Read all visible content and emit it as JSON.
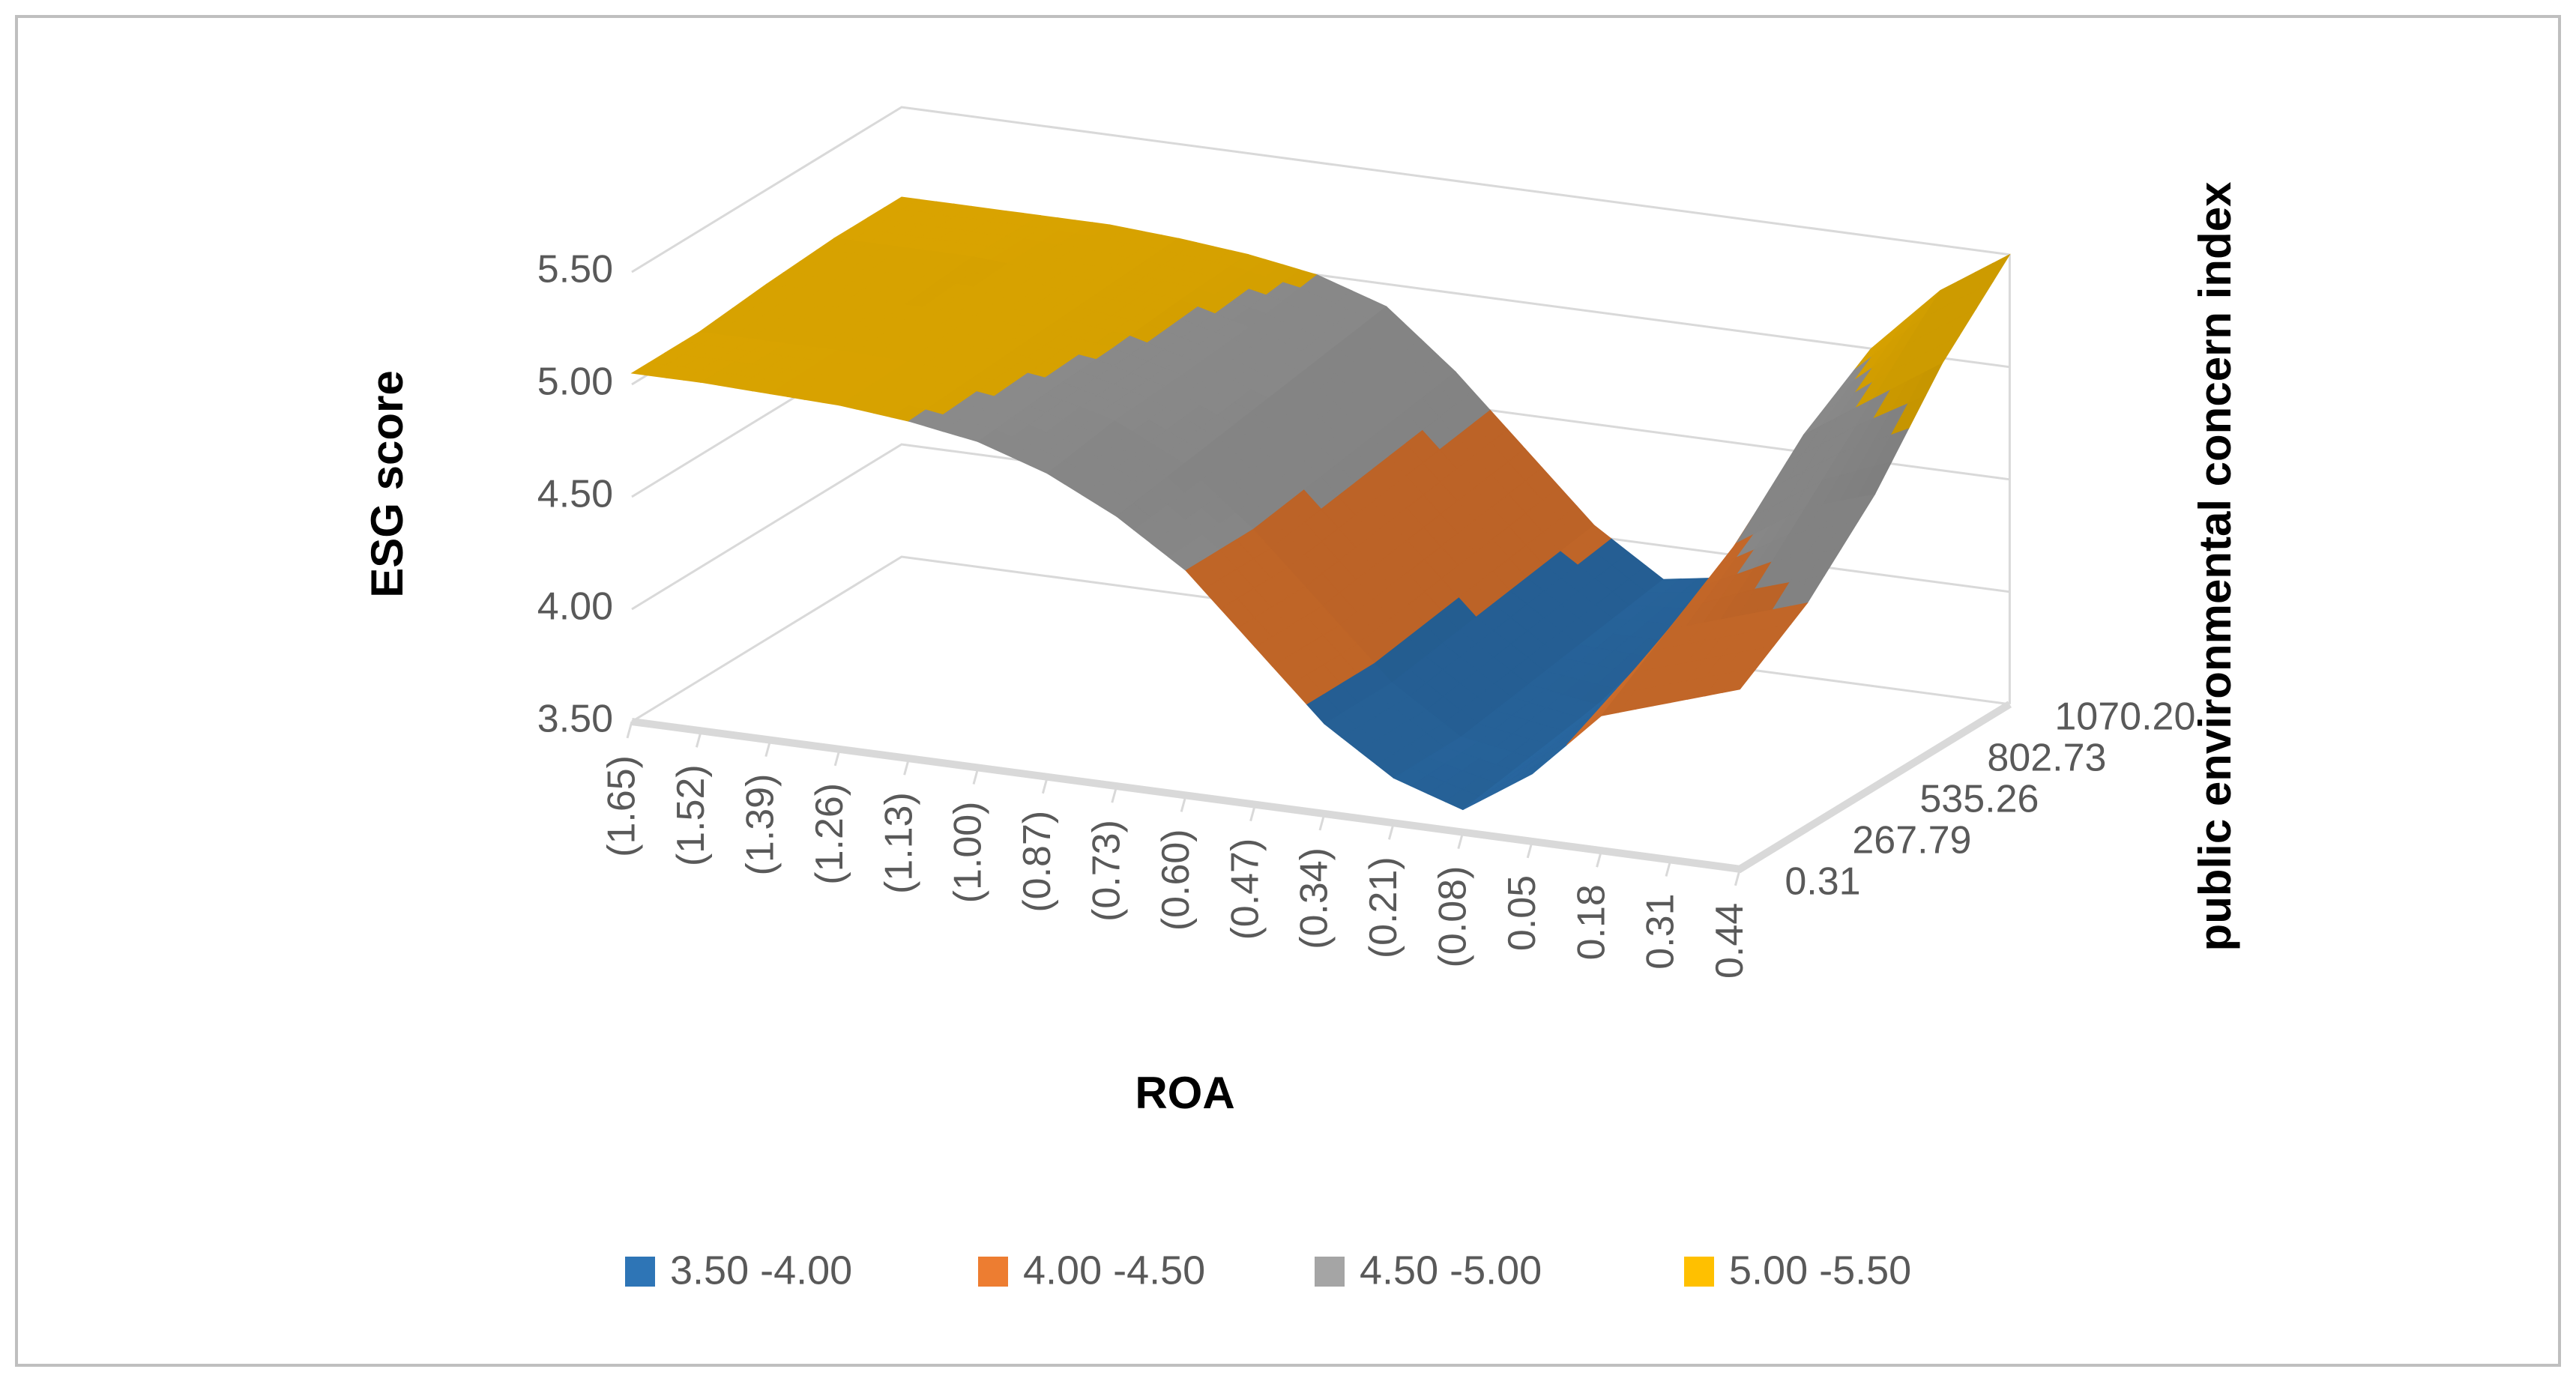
{
  "chart_data": {
    "type": "surface",
    "x_label": "ROA",
    "z_label": "ESG score",
    "depth_label": "public environmental concern index",
    "categories": [
      "(1.65)",
      "(1.52)",
      "(1.39)",
      "(1.26)",
      "(1.13)",
      "(1.00)",
      "(0.87)",
      "(0.73)",
      "(0.60)",
      "(0.47)",
      "(0.34)",
      "(0.21)",
      "(0.08)",
      "0.05",
      "0.18",
      "0.31",
      "0.44"
    ],
    "depth_categories": [
      "0.31",
      "267.79",
      "535.26",
      "802.73",
      "1070.20"
    ],
    "zlim": [
      3.5,
      5.5
    ],
    "zticks": [
      {
        "value": 3.5,
        "label": "3.50"
      },
      {
        "value": 4.0,
        "label": "4.00"
      },
      {
        "value": 4.5,
        "label": "4.50"
      },
      {
        "value": 5.0,
        "label": "5.00"
      },
      {
        "value": 5.5,
        "label": "5.50"
      }
    ],
    "grid": true,
    "legend": "bottom",
    "series": [
      {
        "name": "3.50 -4.00",
        "color": "#2e75b6"
      },
      {
        "name": "4.00 -4.50",
        "color": "#ed7d31"
      },
      {
        "name": "4.50 -5.00",
        "color": "#a5a5a5"
      },
      {
        "name": "5.00 -5.50",
        "color": "#ffc000"
      }
    ],
    "z": [
      [
        5.05,
        5.05,
        5.04,
        5.03,
        5.0,
        4.95,
        4.85,
        4.7,
        4.5,
        4.2,
        3.9,
        3.7,
        3.6,
        3.8,
        4.1,
        4.2,
        4.3
      ],
      [
        5.05,
        5.05,
        5.05,
        5.04,
        5.02,
        4.98,
        4.9,
        4.75,
        4.5,
        4.2,
        3.9,
        3.7,
        3.65,
        3.9,
        4.3,
        4.4,
        4.5
      ],
      [
        5.08,
        5.08,
        5.07,
        5.06,
        5.04,
        5.0,
        4.92,
        4.8,
        4.55,
        4.25,
        3.95,
        3.75,
        3.7,
        4.0,
        4.5,
        4.7,
        4.8
      ],
      [
        5.1,
        5.1,
        5.1,
        5.08,
        5.06,
        5.03,
        4.95,
        4.85,
        4.6,
        4.3,
        4.0,
        3.8,
        3.8,
        4.2,
        4.8,
        5.0,
        5.2
      ],
      [
        5.1,
        5.1,
        5.1,
        5.1,
        5.08,
        5.05,
        5.0,
        4.9,
        4.65,
        4.35,
        4.05,
        3.85,
        3.9,
        4.4,
        5.0,
        5.3,
        5.5
      ]
    ]
  }
}
